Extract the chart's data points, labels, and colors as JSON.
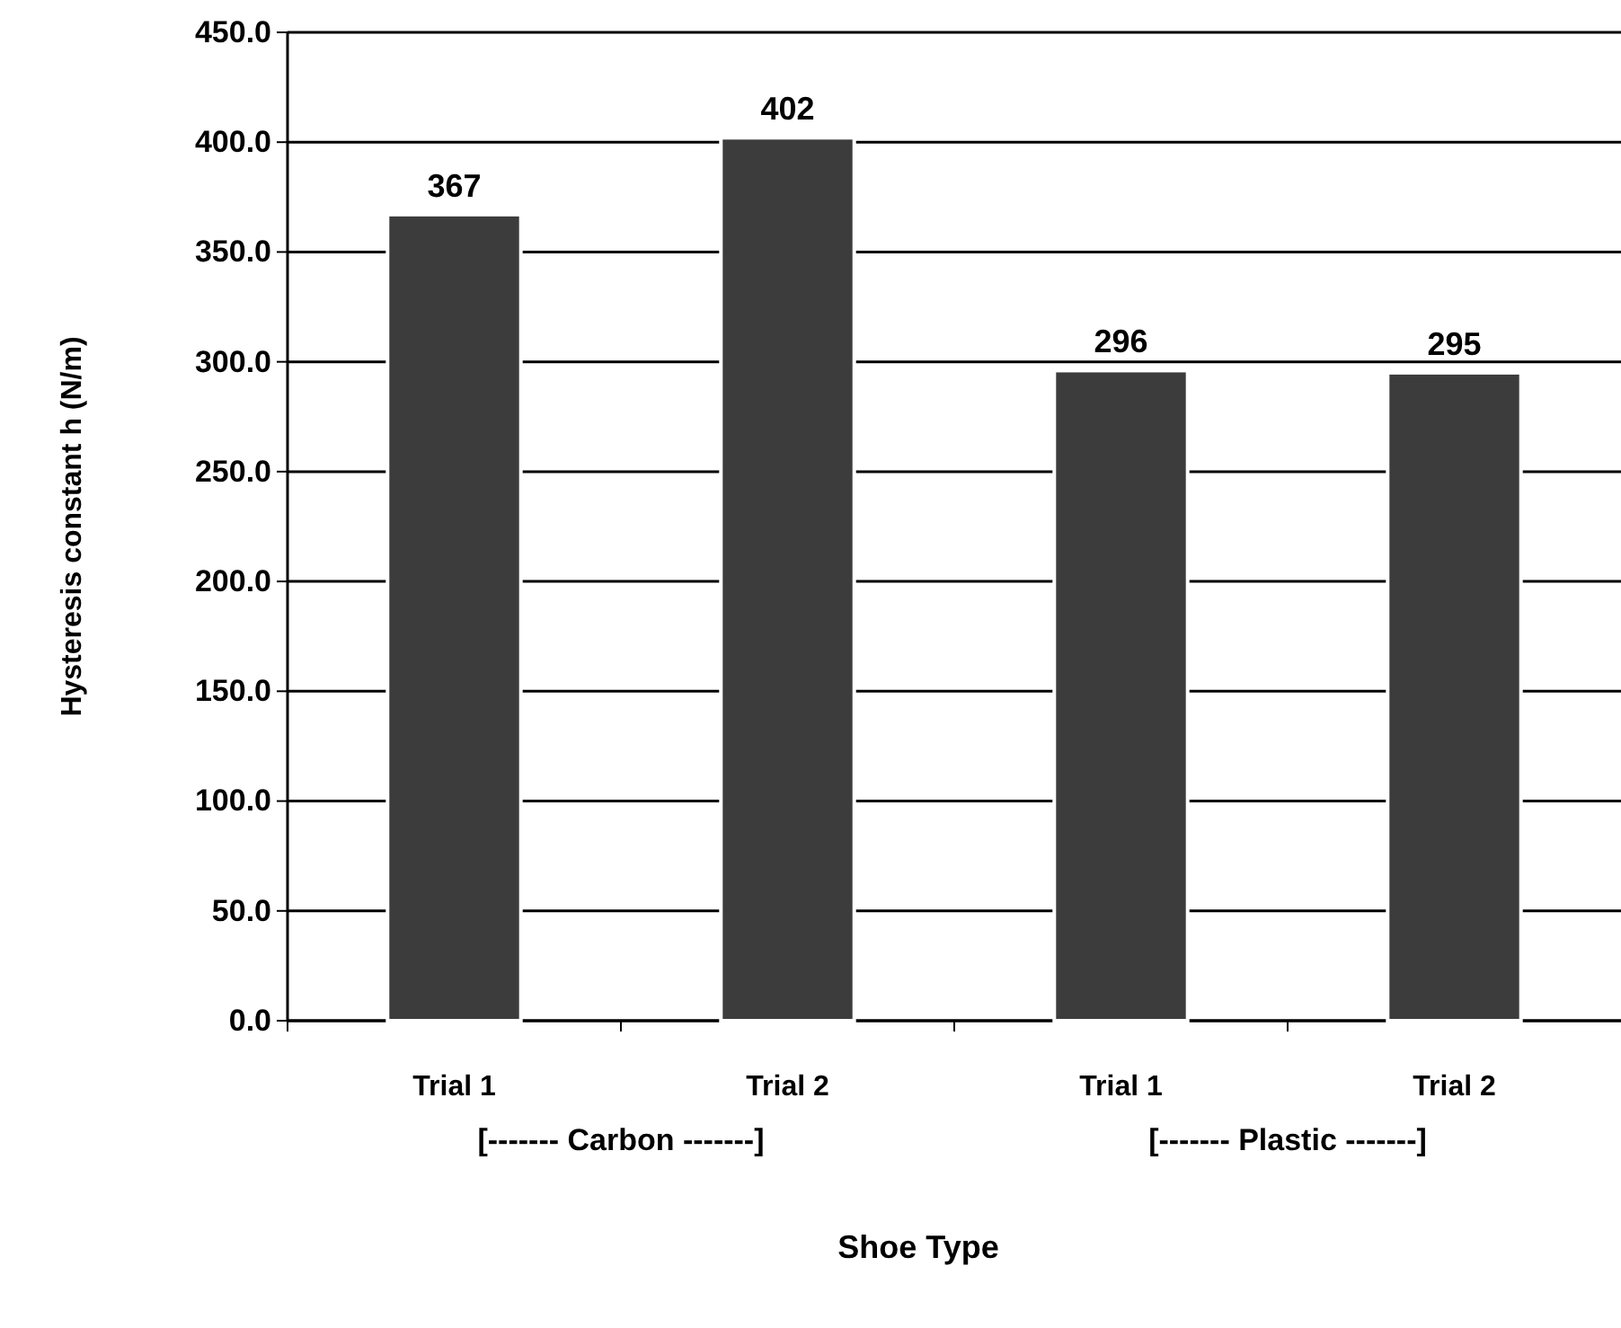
{
  "chart_data": {
    "type": "bar",
    "xlabel": "Shoe Type",
    "ylabel": "Hysteresis constant h (N/m)",
    "categories": [
      "Trial 1",
      "Trial 2",
      "Trial 1",
      "Trial 2"
    ],
    "values": [
      367,
      402,
      296,
      295
    ],
    "color": "#3c3c3c",
    "data_labels": true,
    "ylim": [
      0,
      450
    ],
    "yticks": [
      {
        "value": 0,
        "label": "0.0"
      },
      {
        "value": 50,
        "label": "50.0"
      },
      {
        "value": 100,
        "label": "100.0"
      },
      {
        "value": 150,
        "label": "150.0"
      },
      {
        "value": 200,
        "label": "200.0"
      },
      {
        "value": 250,
        "label": "250.0"
      },
      {
        "value": 300,
        "label": "300.0"
      },
      {
        "value": 350,
        "label": "350.0"
      },
      {
        "value": 400,
        "label": "400.0"
      },
      {
        "value": 450,
        "label": "450.0"
      }
    ],
    "grid": "y",
    "annotations": [
      "[------- Carbon -------]",
      "[------- Plastic -------]"
    ]
  }
}
